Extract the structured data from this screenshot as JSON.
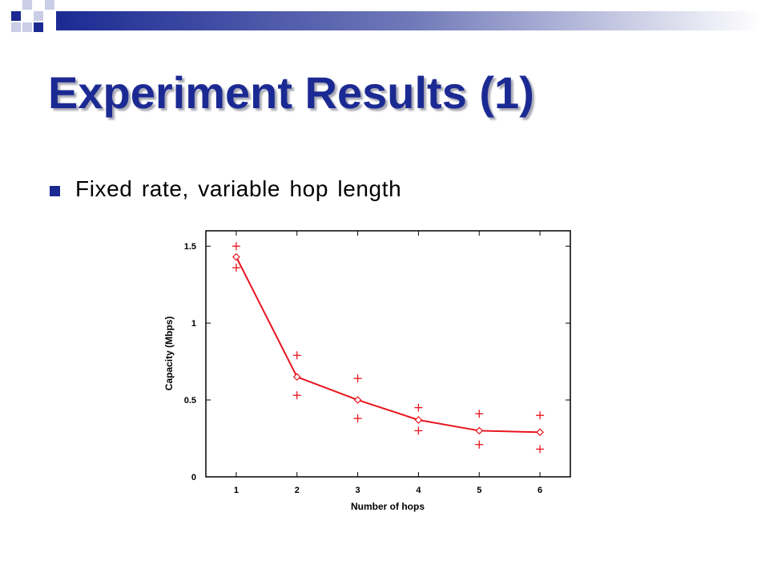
{
  "slide": {
    "title": "Experiment Results (1)",
    "bullet": "Fixed rate, variable hop length",
    "accent_color": "#1b2a93"
  },
  "chart_data": {
    "type": "line",
    "xlabel": "Number of hops",
    "ylabel": "Capacity (Mbps)",
    "xlim": [
      0.5,
      6.5
    ],
    "ylim": [
      0,
      1.6
    ],
    "x_ticks": [
      "1",
      "2",
      "3",
      "4",
      "5",
      "6"
    ],
    "y_ticks": [
      "0",
      "0.5",
      "1",
      "1.5"
    ],
    "series": [
      {
        "marker": "diamond",
        "color": "#e8141e",
        "x": [
          1,
          2,
          3,
          4,
          5,
          6
        ],
        "y": [
          1.43,
          0.65,
          0.5,
          0.37,
          0.3,
          0.29
        ]
      }
    ],
    "bounds": {
      "marker": "plus",
      "color": "#e8141e",
      "x": [
        1,
        2,
        3,
        4,
        5,
        6
      ],
      "upper": [
        1.5,
        0.79,
        0.64,
        0.45,
        0.41,
        0.4
      ],
      "lower": [
        1.36,
        0.53,
        0.38,
        0.3,
        0.21,
        0.18
      ]
    },
    "grid": false,
    "legend": "none"
  }
}
